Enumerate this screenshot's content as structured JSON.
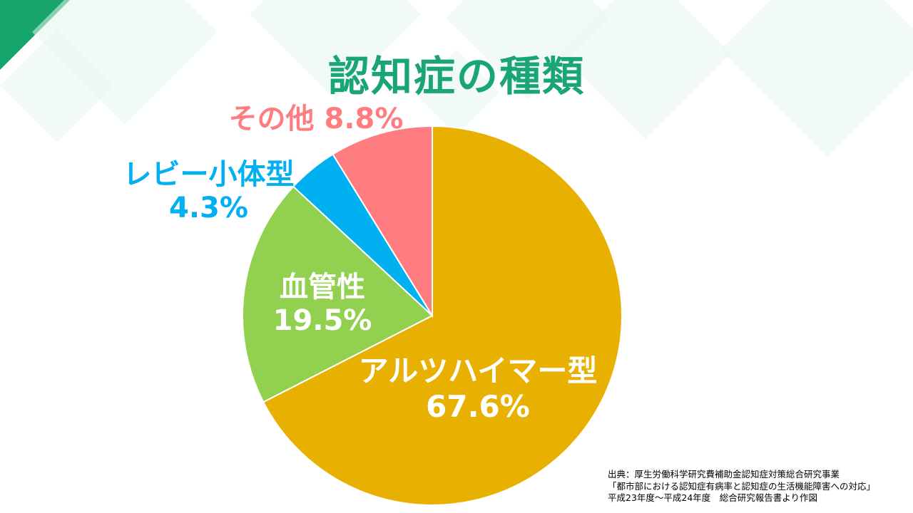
{
  "title": "認知症の種類",
  "colors": {
    "title": "#1aa576",
    "corner": "#17a56b",
    "bg_shape": "#e6f6f1"
  },
  "chart_data": {
    "type": "pie",
    "title": "認知症の種類",
    "start_angle_deg": 0,
    "direction": "clockwise",
    "slices": [
      {
        "label": "アルツハイマー型",
        "value": 67.6,
        "value_text": "67.6%",
        "color": "#e8b000",
        "label_color": "#ffffff"
      },
      {
        "label": "血管性",
        "value": 19.5,
        "value_text": "19.5%",
        "color": "#92d050",
        "label_color": "#ffffff"
      },
      {
        "label": "レビー小体型",
        "value": 4.3,
        "value_text": "4.3%",
        "color": "#00b0f0",
        "label_color": "#00b0f0"
      },
      {
        "label": "その他",
        "value": 8.8,
        "value_text": "8.8%",
        "color": "#ff7c80",
        "label_color": "#ff7c80"
      }
    ]
  },
  "source": {
    "line1": "出典：厚生労働科学研究費補助金認知症対策総合研究事業",
    "line2": "「都市部における認知症有病率と認知症の生活機能障害への対応」",
    "line3": "平成23年度～平成24年度　総合研究報告書より作図"
  }
}
